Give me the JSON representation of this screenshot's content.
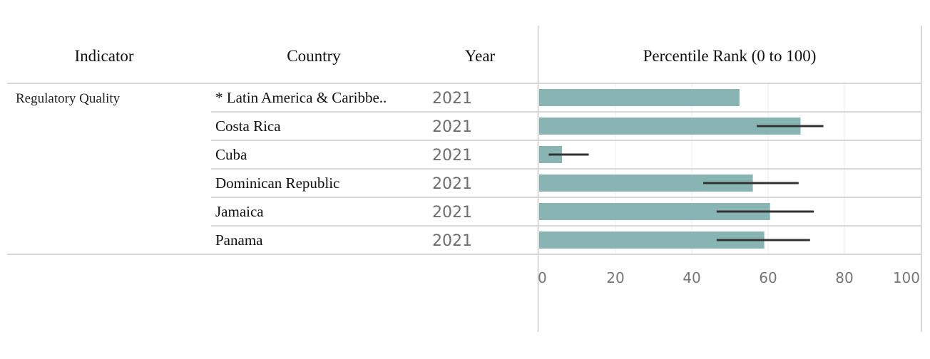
{
  "table": {
    "headers": {
      "indicator": "Indicator",
      "country": "Country",
      "year": "Year",
      "measure": "Percentile Rank (0 to 100)"
    },
    "indicator": "Regulatory Quality"
  },
  "chart_data": {
    "type": "bar",
    "orientation": "horizontal",
    "xlabel": "Percentile Rank (0 to 100)",
    "xlim": [
      0,
      100
    ],
    "xticks": [
      0,
      20,
      40,
      60,
      80,
      100
    ],
    "grid": true,
    "bar_color": "#88b5b3",
    "error_color": "#333333",
    "rows": [
      {
        "country": "* Latin America & Caribbe..",
        "year": "2021",
        "value": 52.5,
        "ci_low": null,
        "ci_high": null
      },
      {
        "country": "Costa Rica",
        "year": "2021",
        "value": 68.5,
        "ci_low": 57,
        "ci_high": 74.5
      },
      {
        "country": "Cuba",
        "year": "2021",
        "value": 6,
        "ci_low": 2.5,
        "ci_high": 13
      },
      {
        "country": "Dominican Republic",
        "year": "2021",
        "value": 56,
        "ci_low": 43,
        "ci_high": 68
      },
      {
        "country": "Jamaica",
        "year": "2021",
        "value": 60.5,
        "ci_low": 46.5,
        "ci_high": 72
      },
      {
        "country": "Panama",
        "year": "2021",
        "value": 59,
        "ci_low": 46.5,
        "ci_high": 71
      }
    ]
  }
}
